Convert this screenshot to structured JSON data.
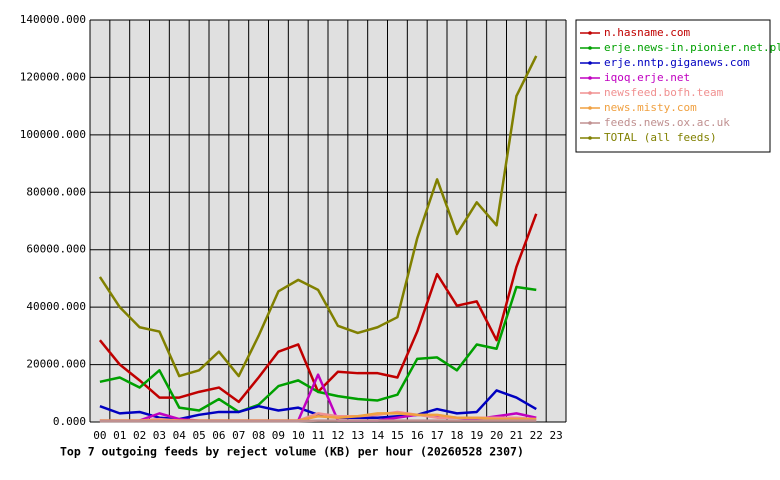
{
  "chart_data": {
    "type": "line",
    "title": "Top 7 outgoing feeds by reject volume (KB) per hour (20260528 2307)",
    "categories": [
      "00",
      "01",
      "02",
      "03",
      "04",
      "05",
      "06",
      "07",
      "08",
      "09",
      "10",
      "11",
      "12",
      "13",
      "14",
      "15",
      "16",
      "17",
      "18",
      "19",
      "20",
      "21",
      "22",
      "23"
    ],
    "ylim": [
      0,
      140000
    ],
    "yticks": [
      {
        "value": 0,
        "label": "0.000"
      },
      {
        "value": 20000,
        "label": "20000.000"
      },
      {
        "value": 40000,
        "label": "40000.000"
      },
      {
        "value": 60000,
        "label": "60000.000"
      },
      {
        "value": 80000,
        "label": "80000.000"
      },
      {
        "value": 100000,
        "label": "100000.000"
      },
      {
        "value": 120000,
        "label": "120000.000"
      },
      {
        "value": 140000,
        "label": "140000.000"
      }
    ],
    "grid": true,
    "legend": "right",
    "series": [
      {
        "name": "n.hasname.com",
        "color": "#c00000",
        "values": [
          28500,
          20000,
          14500,
          8500,
          8500,
          10500,
          12000,
          7000,
          15500,
          24500,
          27000,
          10500,
          17500,
          17000,
          17000,
          15500,
          31500,
          51500,
          40500,
          42000,
          28500,
          54000,
          72500,
          null
        ]
      },
      {
        "name": "erje.news-in.pionier.net.pl",
        "color": "#00a000",
        "values": [
          14000,
          15500,
          12000,
          18000,
          5000,
          4000,
          8000,
          3500,
          6000,
          12500,
          14500,
          10500,
          9000,
          8000,
          7500,
          9500,
          22000,
          22500,
          18000,
          27000,
          25500,
          47000,
          46000,
          null
        ]
      },
      {
        "name": "erje.nntp.giganews.com",
        "color": "#0000c0",
        "values": [
          5500,
          3000,
          3500,
          1500,
          1000,
          2500,
          3500,
          3500,
          5500,
          4000,
          5000,
          2500,
          1500,
          1500,
          1500,
          2000,
          2500,
          4500,
          3000,
          3500,
          11000,
          8500,
          4500,
          null
        ]
      },
      {
        "name": "iqoq.erje.net",
        "color": "#c000c0",
        "values": [
          500,
          500,
          500,
          3000,
          1000,
          500,
          500,
          500,
          500,
          500,
          500,
          16500,
          500,
          500,
          500,
          1500,
          2500,
          2000,
          1500,
          1000,
          2000,
          3000,
          1500,
          null
        ]
      },
      {
        "name": "newsfeed.bofh.team",
        "color": "#f09090",
        "values": [
          500,
          500,
          500,
          1000,
          500,
          500,
          500,
          500,
          500,
          500,
          500,
          3000,
          2000,
          2000,
          2500,
          3500,
          2500,
          1500,
          1500,
          1500,
          1500,
          1500,
          1000,
          null
        ]
      },
      {
        "name": "news.misty.com",
        "color": "#f0a040",
        "values": [
          500,
          500,
          500,
          500,
          500,
          500,
          500,
          500,
          500,
          500,
          500,
          2000,
          1500,
          2000,
          3000,
          3000,
          2500,
          2500,
          1500,
          1500,
          1000,
          1000,
          1000,
          null
        ]
      },
      {
        "name": "feeds.news.ox.ac.uk",
        "color": "#c09090",
        "values": [
          300,
          300,
          300,
          300,
          300,
          300,
          300,
          300,
          300,
          300,
          300,
          500,
          500,
          500,
          500,
          500,
          500,
          500,
          500,
          500,
          500,
          500,
          500,
          null
        ]
      },
      {
        "name": "TOTAL (all feeds)",
        "color": "#808000",
        "values": [
          50500,
          40000,
          33000,
          31500,
          16000,
          18000,
          24500,
          16000,
          30000,
          45500,
          49500,
          46000,
          33500,
          31000,
          33000,
          36500,
          64000,
          84500,
          65500,
          76500,
          68500,
          113500,
          127500,
          null
        ]
      }
    ]
  }
}
